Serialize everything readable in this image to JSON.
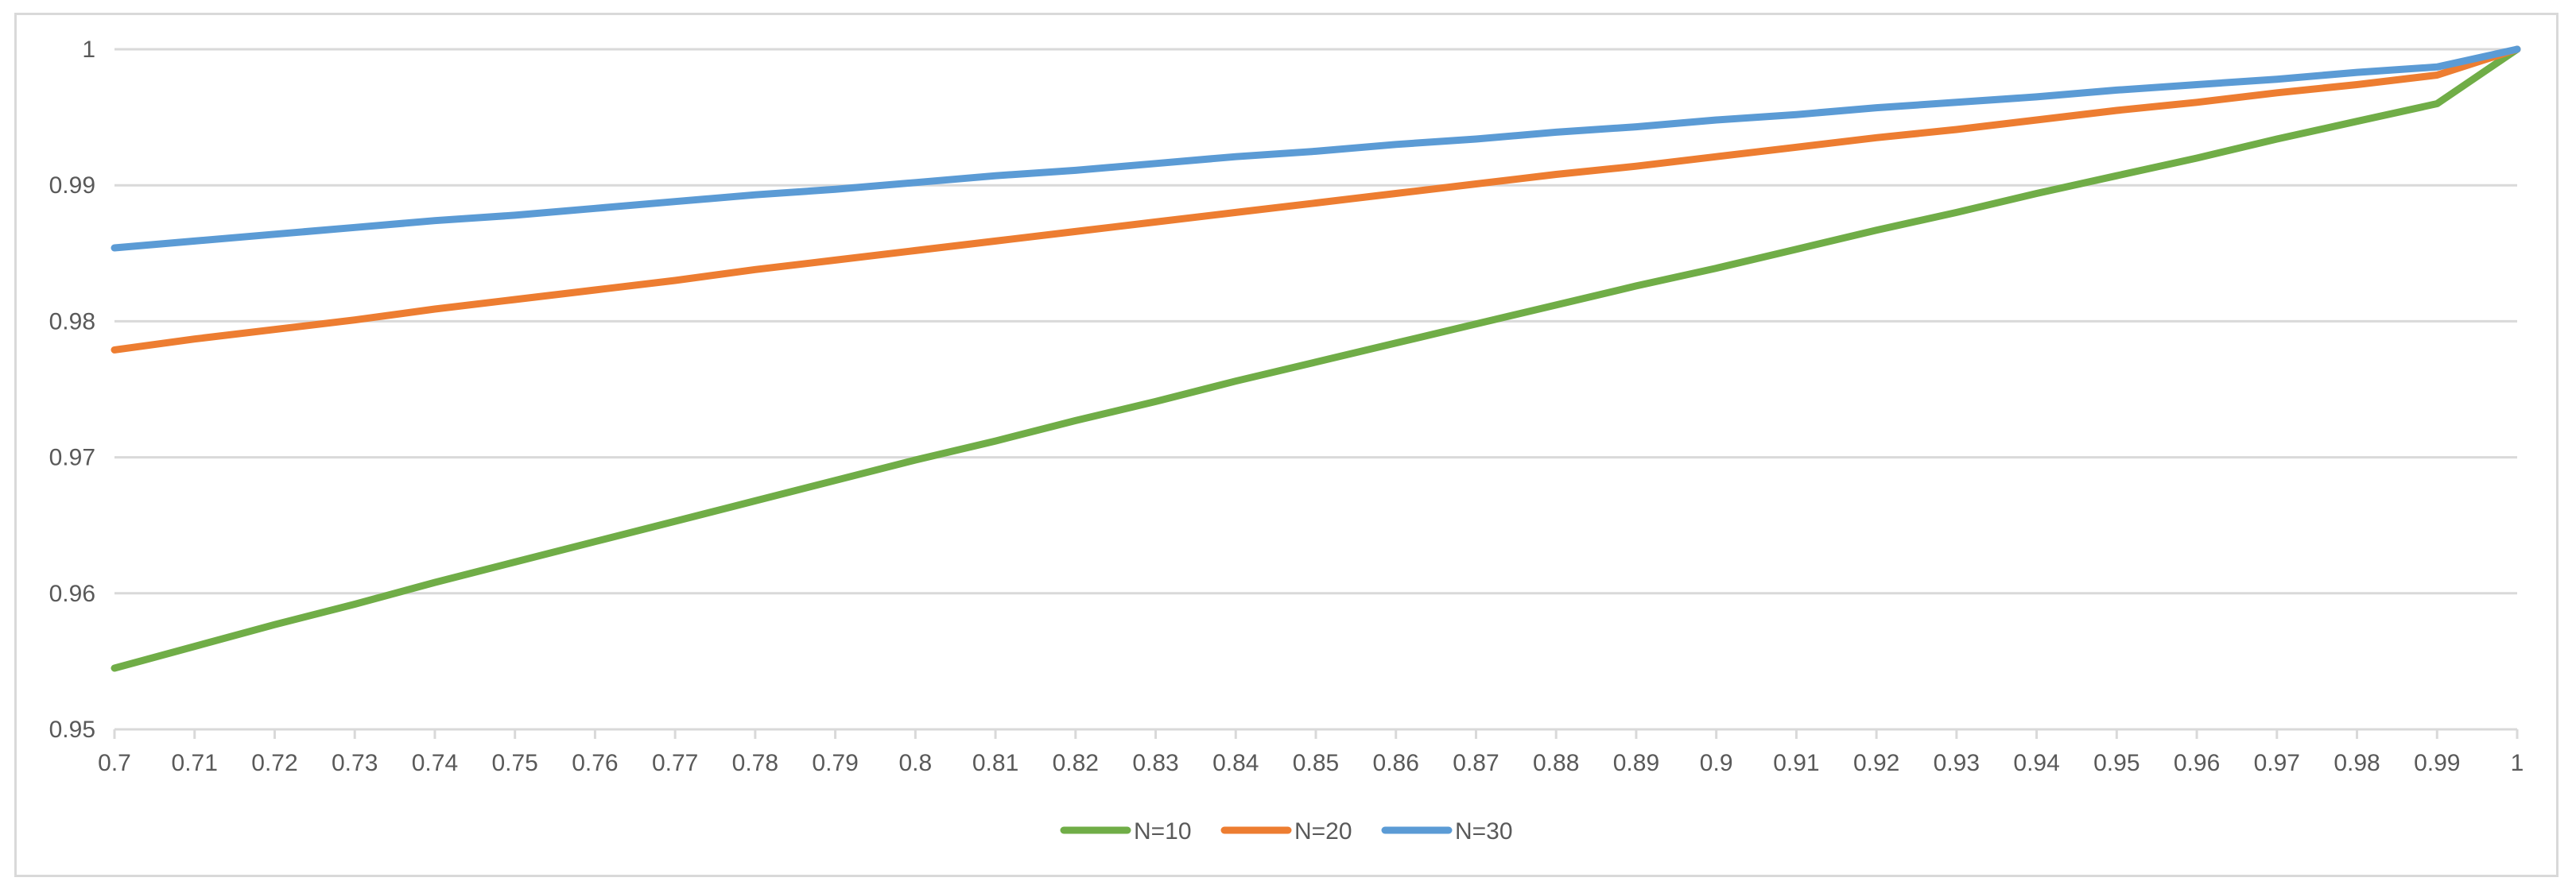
{
  "chart_data": {
    "type": "line",
    "title": "",
    "xlabel": "",
    "ylabel": "",
    "x": [
      0.7,
      0.71,
      0.72,
      0.73,
      0.74,
      0.75,
      0.76,
      0.77,
      0.78,
      0.79,
      0.8,
      0.81,
      0.82,
      0.83,
      0.84,
      0.85,
      0.86,
      0.87,
      0.88,
      0.89,
      0.9,
      0.91,
      0.92,
      0.93,
      0.94,
      0.95,
      0.96,
      0.97,
      0.98,
      0.99,
      1
    ],
    "x_tick_labels": [
      "0.7",
      "0.71",
      "0.72",
      "0.73",
      "0.74",
      "0.75",
      "0.76",
      "0.77",
      "0.78",
      "0.79",
      "0.8",
      "0.81",
      "0.82",
      "0.83",
      "0.84",
      "0.85",
      "0.86",
      "0.87",
      "0.88",
      "0.89",
      "0.9",
      "0.91",
      "0.92",
      "0.93",
      "0.94",
      "0.95",
      "0.96",
      "0.97",
      "0.98",
      "0.99",
      "1"
    ],
    "xlim": [
      0.7,
      1
    ],
    "ylim": [
      0.95,
      1
    ],
    "y_ticks": [
      0.95,
      0.96,
      0.97,
      0.98,
      0.99,
      1
    ],
    "y_tick_labels": [
      "0.95",
      "0.96",
      "0.97",
      "0.98",
      "0.99",
      "1"
    ],
    "grid": "horizontal",
    "legend_position": "bottom-center",
    "series": [
      {
        "name": "N=10",
        "color": "#70ad47",
        "values": [
          0.9545,
          0.9561,
          0.9577,
          0.9592,
          0.9608,
          0.9623,
          0.9638,
          0.9653,
          0.9668,
          0.9683,
          0.9698,
          0.9712,
          0.9727,
          0.9741,
          0.9756,
          0.977,
          0.9784,
          0.9798,
          0.9812,
          0.9826,
          0.9839,
          0.9853,
          0.9867,
          0.988,
          0.9894,
          0.9907,
          0.992,
          0.9934,
          0.9947,
          0.996,
          1.0
        ]
      },
      {
        "name": "N=20",
        "color": "#ed7d31",
        "values": [
          0.9779,
          0.9787,
          0.9794,
          0.9801,
          0.9809,
          0.9816,
          0.9823,
          0.983,
          0.9838,
          0.9845,
          0.9852,
          0.9859,
          0.9866,
          0.9873,
          0.988,
          0.9887,
          0.9894,
          0.9901,
          0.9908,
          0.9914,
          0.9921,
          0.9928,
          0.9935,
          0.9941,
          0.9948,
          0.9955,
          0.9961,
          0.9968,
          0.9974,
          0.9981,
          1.0
        ]
      },
      {
        "name": "N=30",
        "color": "#5b9bd5",
        "values": [
          0.9854,
          0.9859,
          0.9864,
          0.9869,
          0.9874,
          0.9878,
          0.9883,
          0.9888,
          0.9893,
          0.9897,
          0.9902,
          0.9907,
          0.9911,
          0.9916,
          0.9921,
          0.9925,
          0.993,
          0.9934,
          0.9939,
          0.9943,
          0.9948,
          0.9952,
          0.9957,
          0.9961,
          0.9965,
          0.997,
          0.9974,
          0.9978,
          0.9983,
          0.9987,
          1.0
        ]
      }
    ]
  }
}
